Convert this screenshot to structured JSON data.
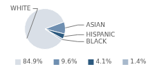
{
  "chart_data": {
    "type": "pie",
    "categories": [
      "WHITE",
      "ASIAN",
      "HISPANIC",
      "BLACK"
    ],
    "values": [
      84.9,
      9.6,
      4.1,
      1.4
    ],
    "value_labels": [
      "84.9%",
      "9.6%",
      "4.1%",
      "1.4%"
    ],
    "colors": [
      "#d9dfe7",
      "#6f8fb1",
      "#2d5a7f",
      "#a8b9cc"
    ],
    "legend": "bottom"
  }
}
